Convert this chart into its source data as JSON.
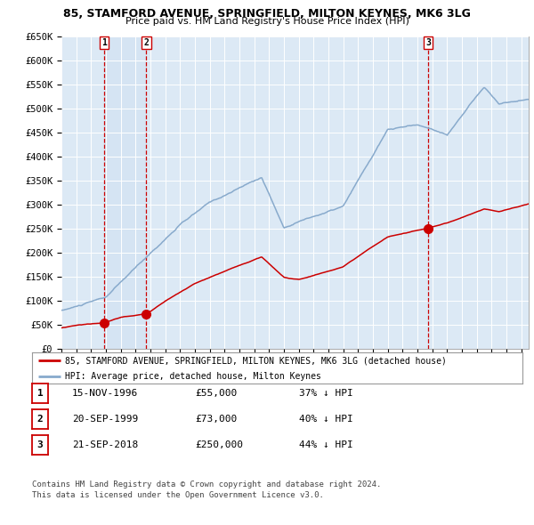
{
  "title_line1": "85, STAMFORD AVENUE, SPRINGFIELD, MILTON KEYNES, MK6 3LG",
  "title_line2": "Price paid vs. HM Land Registry's House Price Index (HPI)",
  "ylim": [
    0,
    650000
  ],
  "yticks": [
    0,
    50000,
    100000,
    150000,
    200000,
    250000,
    300000,
    350000,
    400000,
    450000,
    500000,
    550000,
    600000,
    650000
  ],
  "ytick_labels": [
    "£0",
    "£50K",
    "£100K",
    "£150K",
    "£200K",
    "£250K",
    "£300K",
    "£350K",
    "£400K",
    "£450K",
    "£500K",
    "£550K",
    "£600K",
    "£650K"
  ],
  "hpi_color": "#88aacc",
  "price_color": "#cc0000",
  "plot_bg_color": "#dce9f5",
  "grid_color": "#ffffff",
  "vline_color": "#cc0000",
  "shade_color": "#c8ddf0",
  "transactions": [
    {
      "date": 1996.88,
      "price": 55000,
      "label": "1"
    },
    {
      "date": 1999.72,
      "price": 73000,
      "label": "2"
    },
    {
      "date": 2018.72,
      "price": 250000,
      "label": "3"
    }
  ],
  "transaction_table": [
    {
      "num": "1",
      "date": "15-NOV-1996",
      "price": "£55,000",
      "hpi": "37% ↓ HPI"
    },
    {
      "num": "2",
      "date": "20-SEP-1999",
      "price": "£73,000",
      "hpi": "40% ↓ HPI"
    },
    {
      "num": "3",
      "date": "21-SEP-2018",
      "price": "£250,000",
      "hpi": "44% ↓ HPI"
    }
  ],
  "legend_entries": [
    "85, STAMFORD AVENUE, SPRINGFIELD, MILTON KEYNES, MK6 3LG (detached house)",
    "HPI: Average price, detached house, Milton Keynes"
  ],
  "footnote": "Contains HM Land Registry data © Crown copyright and database right 2024.\nThis data is licensed under the Open Government Licence v3.0.",
  "xmin": 1994.0,
  "xmax": 2025.5
}
